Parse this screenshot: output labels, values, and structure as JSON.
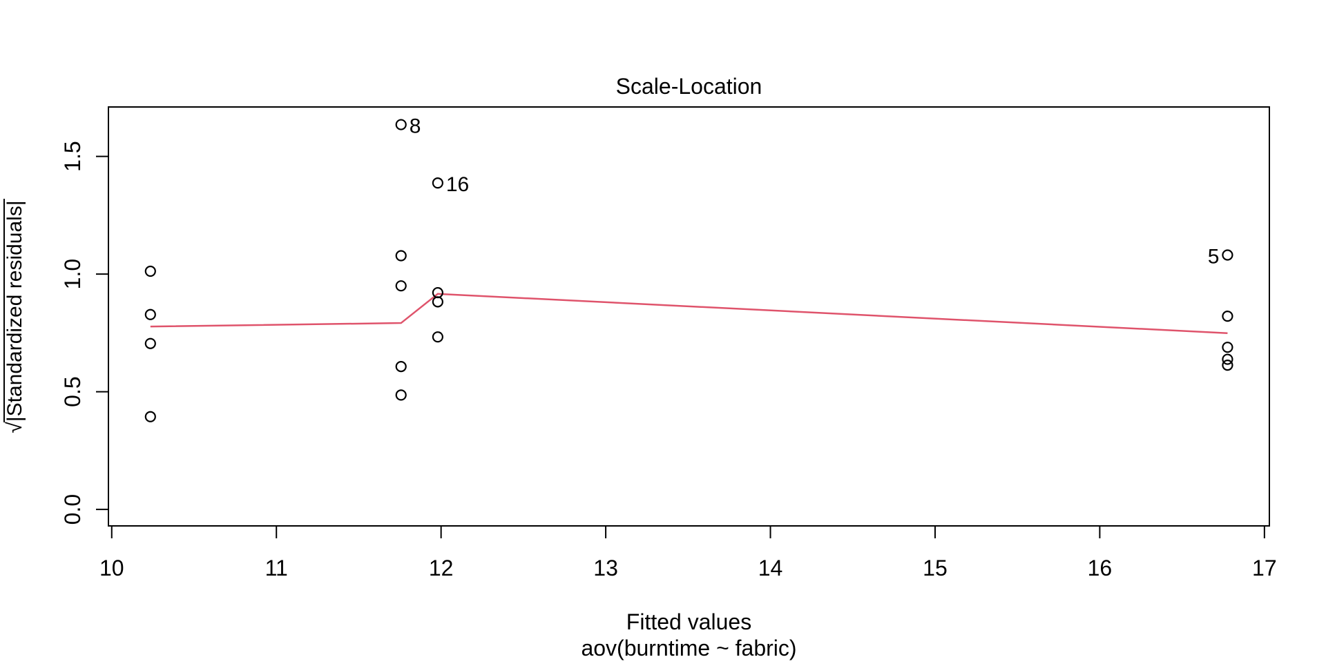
{
  "figure": {
    "background": "#ffffff",
    "title": "Scale-Location",
    "xlabel": "Fitted values",
    "sublabel": "aov(burntime ~ fabric)",
    "ylabel_prefix": "√",
    "ylabel_body": "|Standardized residuals|"
  },
  "chart_data": {
    "type": "scatter",
    "title": "Scale-Location",
    "xlabel": "Fitted values",
    "model_label": "aov(burntime ~ fabric)",
    "ylabel": "sqrt(|Standardized residuals|)",
    "xlim": [
      9.98,
      17.03
    ],
    "ylim": [
      -0.07,
      1.71
    ],
    "grid": false,
    "legend": null,
    "marker": "open-circle",
    "marker_color": "#000000",
    "x_ticks": [
      {
        "value": 10,
        "label": "10"
      },
      {
        "value": 11,
        "label": "11"
      },
      {
        "value": 12,
        "label": "12"
      },
      {
        "value": 13,
        "label": "13"
      },
      {
        "value": 14,
        "label": "14"
      },
      {
        "value": 15,
        "label": "15"
      },
      {
        "value": 16,
        "label": "16"
      },
      {
        "value": 17,
        "label": "17"
      }
    ],
    "y_ticks": [
      {
        "value": 0.0,
        "label": "0.0"
      },
      {
        "value": 0.5,
        "label": "0.5"
      },
      {
        "value": 1.0,
        "label": "1.0"
      },
      {
        "value": 1.5,
        "label": "1.5"
      }
    ],
    "points": [
      {
        "x": 10.235,
        "y": 1.012
      },
      {
        "x": 10.235,
        "y": 0.828
      },
      {
        "x": 10.235,
        "y": 0.705
      },
      {
        "x": 10.235,
        "y": 0.394
      },
      {
        "x": 11.757,
        "y": 1.635
      },
      {
        "x": 11.757,
        "y": 1.078
      },
      {
        "x": 11.757,
        "y": 0.95
      },
      {
        "x": 11.757,
        "y": 0.607
      },
      {
        "x": 11.757,
        "y": 0.486
      },
      {
        "x": 11.98,
        "y": 1.387
      },
      {
        "x": 11.98,
        "y": 0.921
      },
      {
        "x": 11.98,
        "y": 0.882
      },
      {
        "x": 11.98,
        "y": 0.733
      },
      {
        "x": 16.776,
        "y": 1.081
      },
      {
        "x": 16.776,
        "y": 0.821
      },
      {
        "x": 16.776,
        "y": 0.689
      },
      {
        "x": 16.776,
        "y": 0.638
      },
      {
        "x": 16.776,
        "y": 0.613
      }
    ],
    "labeled_points": [
      {
        "label": "8",
        "x": 11.757,
        "y": 1.635,
        "side": "right"
      },
      {
        "label": "16",
        "x": 11.98,
        "y": 1.387,
        "side": "right"
      },
      {
        "label": "5",
        "x": 16.776,
        "y": 1.081,
        "side": "left"
      }
    ],
    "smooth_line": {
      "name": "lowess-smoother",
      "color": "#DF536B",
      "points": [
        [
          10.235,
          0.777
        ],
        [
          11.757,
          0.792
        ],
        [
          11.98,
          0.916
        ],
        [
          16.776,
          0.749
        ]
      ]
    }
  }
}
